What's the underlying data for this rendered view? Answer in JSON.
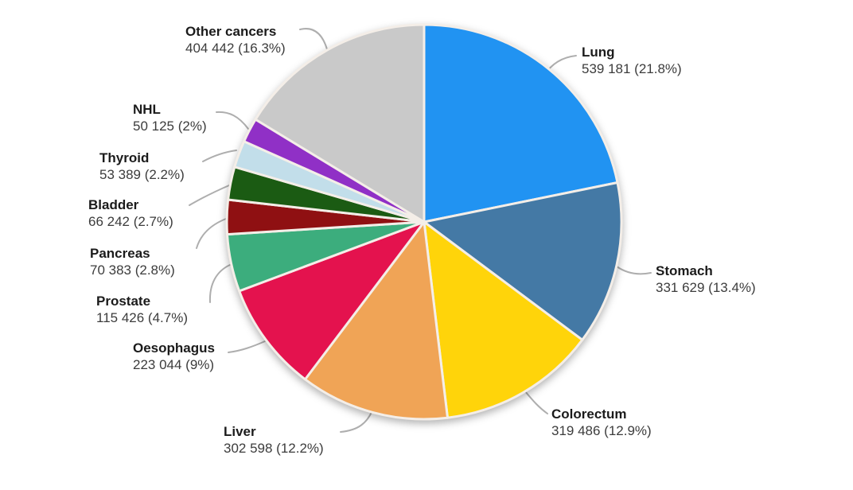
{
  "chart_data": {
    "type": "pie",
    "title": "",
    "direction": "clockwise",
    "start_angle_deg": 0,
    "labels_position": "outside",
    "legend_position": "none",
    "slices": [
      {
        "id": "lung",
        "label": "Lung",
        "value": 539181,
        "pct": 21.8,
        "value_label": "539 181 (21.8%)",
        "color": "#2193F2"
      },
      {
        "id": "stomach",
        "label": "Stomach",
        "value": 331629,
        "pct": 13.4,
        "value_label": "331 629 (13.4%)",
        "color": "#4479A5"
      },
      {
        "id": "colorectum",
        "label": "Colorectum",
        "value": 319486,
        "pct": 12.9,
        "value_label": "319 486 (12.9%)",
        "color": "#FFD40A"
      },
      {
        "id": "liver",
        "label": "Liver",
        "value": 302598,
        "pct": 12.2,
        "value_label": "302 598 (12.2%)",
        "color": "#F0A456"
      },
      {
        "id": "oesophagus",
        "label": "Oesophagus",
        "value": 223044,
        "pct": 9,
        "value_label": "223 044 (9%)",
        "color": "#E4124E"
      },
      {
        "id": "prostate",
        "label": "Prostate",
        "value": 115426,
        "pct": 4.7,
        "value_label": "115 426 (4.7%)",
        "color": "#3CAD7D"
      },
      {
        "id": "pancreas",
        "label": "Pancreas",
        "value": 70383,
        "pct": 2.8,
        "value_label": "70 383 (2.8%)",
        "color": "#8F1012"
      },
      {
        "id": "bladder",
        "label": "Bladder",
        "value": 66242,
        "pct": 2.7,
        "value_label": "66 242 (2.7%)",
        "color": "#1B5B13"
      },
      {
        "id": "thyroid",
        "label": "Thyroid",
        "value": 53389,
        "pct": 2.2,
        "value_label": "53 389 (2.2%)",
        "color": "#C2DEEA"
      },
      {
        "id": "nhl",
        "label": "NHL",
        "value": 50125,
        "pct": 2,
        "value_label": "50 125 (2%)",
        "color": "#9030C6"
      },
      {
        "id": "other",
        "label": "Other cancers",
        "value": 404442,
        "pct": 16.3,
        "value_label": "404 442 (16.3%)",
        "color": "#C9C9C9"
      }
    ]
  }
}
